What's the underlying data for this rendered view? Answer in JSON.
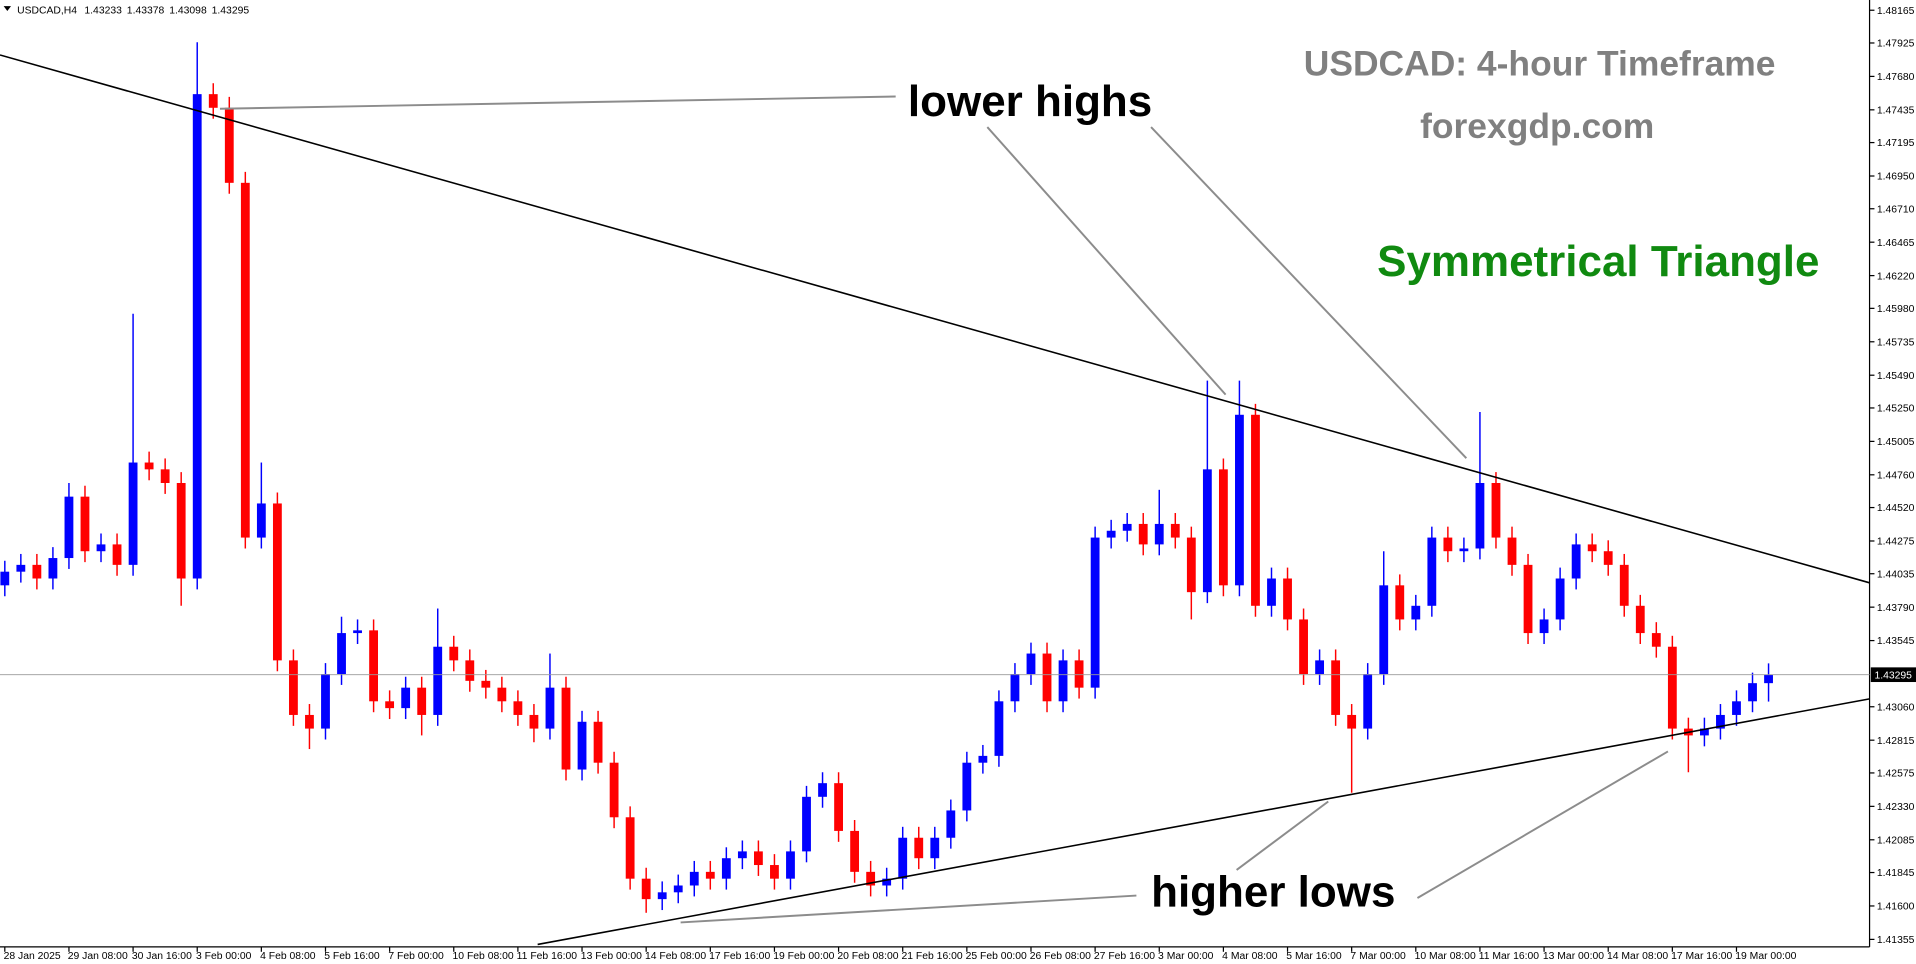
{
  "chart_data": {
    "type": "candlestick",
    "symbol": "USDCAD,H4",
    "title": "USDCAD: 4-hour Timeframe",
    "subtitle": "forexgdp.com",
    "pattern": "Symmetrical Triangle",
    "annotations": [
      "lower highs",
      "higher lows"
    ],
    "up_color": "#0000ff",
    "down_color": "#ff0000",
    "xlim": [
      -0.3,
      116.3
    ],
    "ylim": [
      1.413,
      1.4824
    ],
    "xticks": [
      {
        "value": 0,
        "label": "28 Jan 2025"
      },
      {
        "value": 4,
        "label": "29 Jan 08:00"
      },
      {
        "value": 8,
        "label": "30 Jan 16:00"
      },
      {
        "value": 12,
        "label": "3 Feb 00:00"
      },
      {
        "value": 16,
        "label": "4 Feb 08:00"
      },
      {
        "value": 20,
        "label": "5 Feb 16:00"
      },
      {
        "value": 24,
        "label": "7 Feb 00:00"
      },
      {
        "value": 28,
        "label": "10 Feb 08:00"
      },
      {
        "value": 32,
        "label": "11 Feb 16:00"
      },
      {
        "value": 36,
        "label": "13 Feb 00:00"
      },
      {
        "value": 40,
        "label": "14 Feb 08:00"
      },
      {
        "value": 44,
        "label": "17 Feb 16:00"
      },
      {
        "value": 48,
        "label": "19 Feb 00:00"
      },
      {
        "value": 52,
        "label": "20 Feb 08:00"
      },
      {
        "value": 56,
        "label": "21 Feb 16:00"
      },
      {
        "value": 60,
        "label": "25 Feb 00:00"
      },
      {
        "value": 64,
        "label": "26 Feb 08:00"
      },
      {
        "value": 68,
        "label": "27 Feb 16:00"
      },
      {
        "value": 72,
        "label": "3 Mar 00:00"
      },
      {
        "value": 76,
        "label": "4 Mar 08:00"
      },
      {
        "value": 80,
        "label": "5 Mar 16:00"
      },
      {
        "value": 84,
        "label": "7 Mar 00:00"
      },
      {
        "value": 88,
        "label": "10 Mar 08:00"
      },
      {
        "value": 92,
        "label": "11 Mar 16:00"
      },
      {
        "value": 96,
        "label": "13 Mar 00:00"
      },
      {
        "value": 100,
        "label": "14 Mar 08:00"
      },
      {
        "value": 104,
        "label": "17 Mar 16:00"
      },
      {
        "value": 108,
        "label": "19 Mar 00:00"
      }
    ],
    "yticks": [
      1.48165,
      1.47925,
      {
        "value": 1.4768,
        "label": "1.47680"
      },
      1.47435,
      1.47195,
      {
        "value": 1.4695,
        "label": "1.46950"
      },
      {
        "value": 1.4671,
        "label": "1.46710"
      },
      1.46465,
      {
        "value": 1.4622,
        "label": "1.46220"
      },
      {
        "value": 1.4598,
        "label": "1.45980"
      },
      1.45735,
      {
        "value": 1.4549,
        "label": "1.45490"
      },
      {
        "value": 1.4525,
        "label": "1.45250"
      },
      1.45005,
      {
        "value": 1.4476,
        "label": "1.44760"
      },
      {
        "value": 1.4452,
        "label": "1.44520"
      },
      1.44275,
      1.44035,
      {
        "value": 1.4379,
        "label": "1.43790"
      },
      1.43545,
      {
        "value": 1.4306,
        "label": "1.43060"
      },
      1.42815,
      1.42575,
      {
        "value": 1.4233,
        "label": "1.42330"
      },
      1.42085,
      1.41845,
      {
        "value": 1.416,
        "label": "1.41600"
      },
      1.41355
    ],
    "open": [
      1.4395,
      1.4405,
      1.441,
      1.44,
      1.4415,
      1.446,
      1.442,
      1.4425,
      1.441,
      1.4485,
      1.448,
      1.447,
      1.44,
      1.4755,
      1.4745,
      1.469,
      1.443,
      1.4455,
      1.434,
      1.43,
      1.429,
      1.433,
      1.436,
      1.4362,
      1.431,
      1.4305,
      1.432,
      1.43,
      1.435,
      1.434,
      1.4325,
      1.432,
      1.431,
      1.43,
      1.429,
      1.432,
      1.426,
      1.4295,
      1.4265,
      1.4225,
      1.418,
      1.4165,
      1.417,
      1.4175,
      1.4185,
      1.418,
      1.4195,
      1.42,
      1.419,
      1.418,
      1.42,
      1.424,
      1.425,
      1.4215,
      1.4185,
      1.4175,
      1.418,
      1.421,
      1.4195,
      1.421,
      1.423,
      1.4265,
      1.427,
      1.431,
      1.433,
      1.4345,
      1.431,
      1.434,
      1.432,
      1.443,
      1.4435,
      1.444,
      1.4425,
      1.444,
      1.443,
      1.439,
      1.448,
      1.4395,
      1.452,
      1.438,
      1.44,
      1.437,
      1.433,
      1.434,
      1.43,
      1.429,
      1.433,
      1.4395,
      1.437,
      1.438,
      1.443,
      1.442,
      1.4422,
      1.447,
      1.443,
      1.441,
      1.436,
      1.437,
      1.44,
      1.4425,
      1.442,
      1.441,
      1.438,
      1.436,
      1.435,
      1.429,
      1.4285,
      1.429,
      1.43,
      1.431,
      1.43233
    ],
    "high": [
      1.4413,
      1.4418,
      1.4418,
      1.4423,
      1.447,
      1.4468,
      1.4433,
      1.4433,
      1.4594,
      1.4493,
      1.4488,
      1.4478,
      1.4793,
      1.4763,
      1.4753,
      1.4698,
      1.4485,
      1.4463,
      1.4348,
      1.4308,
      1.4338,
      1.4372,
      1.437,
      1.437,
      1.4318,
      1.4328,
      1.4328,
      1.4378,
      1.4358,
      1.4348,
      1.4333,
      1.4328,
      1.4318,
      1.4308,
      1.4345,
      1.4328,
      1.4303,
      1.4303,
      1.4273,
      1.4233,
      1.4188,
      1.4178,
      1.4183,
      1.4193,
      1.4193,
      1.4203,
      1.4208,
      1.4208,
      1.4198,
      1.4208,
      1.4248,
      1.4258,
      1.4258,
      1.4223,
      1.4193,
      1.4188,
      1.4218,
      1.4218,
      1.4218,
      1.4238,
      1.4273,
      1.4278,
      1.4318,
      1.4338,
      1.4353,
      1.4353,
      1.4348,
      1.4348,
      1.4438,
      1.4443,
      1.4448,
      1.4448,
      1.4465,
      1.4448,
      1.4438,
      1.4545,
      1.4488,
      1.4545,
      1.4528,
      1.4408,
      1.4408,
      1.4378,
      1.4348,
      1.4348,
      1.4308,
      1.4338,
      1.442,
      1.4403,
      1.4388,
      1.4438,
      1.4438,
      1.443,
      1.4522,
      1.4478,
      1.4438,
      1.4418,
      1.4378,
      1.4408,
      1.4433,
      1.4433,
      1.4428,
      1.4418,
      1.4388,
      1.4368,
      1.4358,
      1.4298,
      1.4298,
      1.4308,
      1.4318,
      1.4331,
      1.43378
    ],
    "low": [
      1.4387,
      1.4397,
      1.4392,
      1.4392,
      1.4407,
      1.4412,
      1.4412,
      1.4402,
      1.4402,
      1.4472,
      1.4462,
      1.438,
      1.4392,
      1.4737,
      1.4682,
      1.4422,
      1.4422,
      1.4332,
      1.4292,
      1.4275,
      1.4282,
      1.4322,
      1.4352,
      1.4302,
      1.4297,
      1.4297,
      1.4285,
      1.4292,
      1.4332,
      1.4317,
      1.4312,
      1.4302,
      1.4292,
      1.428,
      1.4282,
      1.4252,
      1.4252,
      1.4257,
      1.4217,
      1.4172,
      1.4155,
      1.4157,
      1.4162,
      1.4167,
      1.4172,
      1.4172,
      1.4187,
      1.4182,
      1.4172,
      1.4172,
      1.4192,
      1.4232,
      1.4207,
      1.4177,
      1.4167,
      1.4167,
      1.4172,
      1.4187,
      1.4187,
      1.4202,
      1.4222,
      1.4257,
      1.4262,
      1.4302,
      1.4322,
      1.4302,
      1.4302,
      1.4312,
      1.4312,
      1.4422,
      1.4427,
      1.4417,
      1.4417,
      1.4422,
      1.437,
      1.4382,
      1.4387,
      1.4387,
      1.4372,
      1.4372,
      1.4362,
      1.4322,
      1.4322,
      1.4292,
      1.4243,
      1.4282,
      1.4322,
      1.4362,
      1.4362,
      1.4372,
      1.4412,
      1.4412,
      1.4414,
      1.4422,
      1.4402,
      1.4352,
      1.4352,
      1.4362,
      1.4392,
      1.4412,
      1.4402,
      1.4372,
      1.4352,
      1.4342,
      1.4282,
      1.4258,
      1.4277,
      1.4282,
      1.4292,
      1.4302,
      1.43098
    ],
    "close": [
      1.4405,
      1.441,
      1.44,
      1.4415,
      1.446,
      1.442,
      1.4425,
      1.441,
      1.4485,
      1.448,
      1.447,
      1.44,
      1.4755,
      1.4745,
      1.469,
      1.443,
      1.4455,
      1.434,
      1.43,
      1.429,
      1.433,
      1.436,
      1.4362,
      1.431,
      1.4305,
      1.432,
      1.43,
      1.435,
      1.434,
      1.4325,
      1.432,
      1.431,
      1.43,
      1.429,
      1.432,
      1.426,
      1.4295,
      1.4265,
      1.4225,
      1.418,
      1.4165,
      1.417,
      1.4175,
      1.4185,
      1.418,
      1.4195,
      1.42,
      1.419,
      1.418,
      1.42,
      1.424,
      1.425,
      1.4215,
      1.4185,
      1.4175,
      1.418,
      1.421,
      1.4195,
      1.421,
      1.423,
      1.4265,
      1.427,
      1.431,
      1.433,
      1.4345,
      1.431,
      1.434,
      1.432,
      1.443,
      1.4435,
      1.444,
      1.4425,
      1.444,
      1.443,
      1.439,
      1.448,
      1.4395,
      1.452,
      1.438,
      1.44,
      1.437,
      1.433,
      1.434,
      1.43,
      1.429,
      1.433,
      1.4395,
      1.437,
      1.438,
      1.443,
      1.442,
      1.4422,
      1.447,
      1.443,
      1.441,
      1.436,
      1.437,
      1.44,
      1.4425,
      1.442,
      1.441,
      1.438,
      1.436,
      1.435,
      1.429,
      1.4285,
      1.429,
      1.43,
      1.431,
      1.43233,
      1.43295
    ]
  }
}
